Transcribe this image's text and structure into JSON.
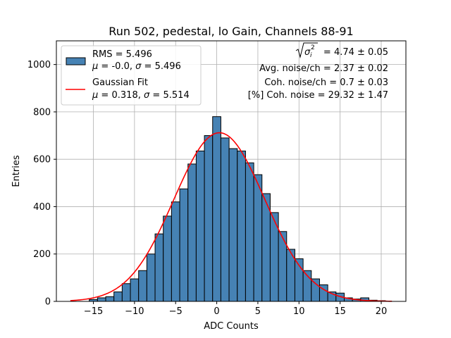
{
  "chart_data": {
    "type": "bar",
    "title": "Run 502, pedestal, lo Gain, Channels 88-91",
    "xlabel": "ADC Counts",
    "ylabel": "Entries",
    "xlim": [
      -19.5,
      23
    ],
    "ylim": [
      0,
      1100
    ],
    "grid": true,
    "xticks": [
      -15,
      -10,
      -5,
      0,
      5,
      10,
      15,
      20
    ],
    "yticks": [
      0,
      200,
      400,
      600,
      800,
      1000
    ],
    "bin_width": 1,
    "bins": [
      -15,
      -14,
      -13,
      -12,
      -11,
      -10,
      -9,
      -8,
      -7,
      -6,
      -5,
      -4,
      -3,
      -2,
      -1,
      0,
      1,
      2,
      3,
      4,
      5,
      6,
      7,
      8,
      9,
      10,
      11,
      12,
      13,
      14,
      15,
      16,
      17,
      18,
      19,
      20
    ],
    "values": [
      8,
      15,
      20,
      40,
      75,
      95,
      130,
      200,
      285,
      360,
      420,
      475,
      580,
      635,
      700,
      780,
      690,
      645,
      635,
      585,
      535,
      455,
      375,
      295,
      220,
      180,
      130,
      95,
      70,
      40,
      35,
      15,
      10,
      15,
      5,
      3
    ],
    "series": [
      {
        "name": "RMS = 5.496\nμ = -0.0, σ = 5.496",
        "kind": "histogram",
        "color": "#4682b4"
      },
      {
        "name": "Gaussian Fit\nμ = 0.318, σ = 5.514",
        "kind": "line",
        "color": "#ff0000",
        "mu": 0.318,
        "sigma": 5.514,
        "amplitude": 712,
        "x_range": [
          -17.8,
          21.3
        ]
      }
    ],
    "legend": {
      "placement": "upper-left",
      "entries": [
        {
          "line1": "RMS = 5.496",
          "line2": "μ = -0.0, σ = 5.496"
        },
        {
          "line1": "Gaussian Fit",
          "line2": "μ = 0.318, σ = 5.514"
        }
      ]
    },
    "annotations": {
      "placement": "upper-right",
      "line1_suffix": " = 4.74 ± 0.05",
      "line2": "Avg. noise/ch = 2.37 ± 0.02",
      "line3": "Coh. noise/ch = 0.7 ± 0.03",
      "line4": "[%] Coh. noise = 29.32 ± 1.47"
    }
  }
}
